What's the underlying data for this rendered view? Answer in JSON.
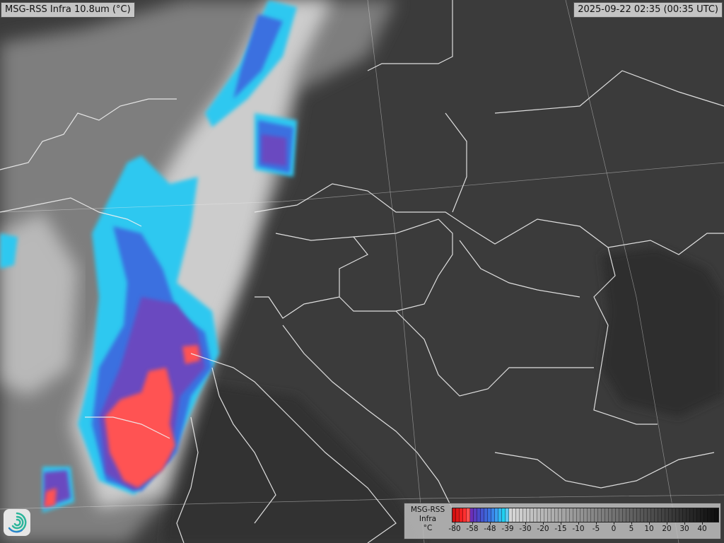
{
  "title": "MSG-RSS Infra 10.8um (°C)",
  "timestamp": "2025-09-22 02:35 (00:35 UTC)",
  "logo": {
    "icon": "swirl-logo-icon",
    "colors": [
      "#2bb59a",
      "#2a7fd0"
    ]
  },
  "legend": {
    "title_lines": [
      "MSG-RSS",
      "Infra",
      "°C"
    ],
    "ticks": [
      "-80",
      "-58",
      "-48",
      "-39",
      "-30",
      "-20",
      "-15",
      "-10",
      "-5",
      "0",
      "5",
      "10",
      "20",
      "30",
      "40"
    ],
    "color_stops": {
      "red": "#ff2020",
      "purple": "#6a3cc8",
      "blue": "#3a7ae8",
      "cyan": "#20d8f0",
      "light_gray": "#d8d8d8",
      "black": "#101010"
    }
  },
  "map": {
    "background": "#3a3a3a",
    "cloud_colors": {
      "white": "#d9d9d9",
      "cyan": "#28c8f0",
      "blue": "#3b6fe0",
      "purple": "#6a48c0",
      "red": "#ff5252"
    },
    "border_color": "#f2f2f2"
  }
}
